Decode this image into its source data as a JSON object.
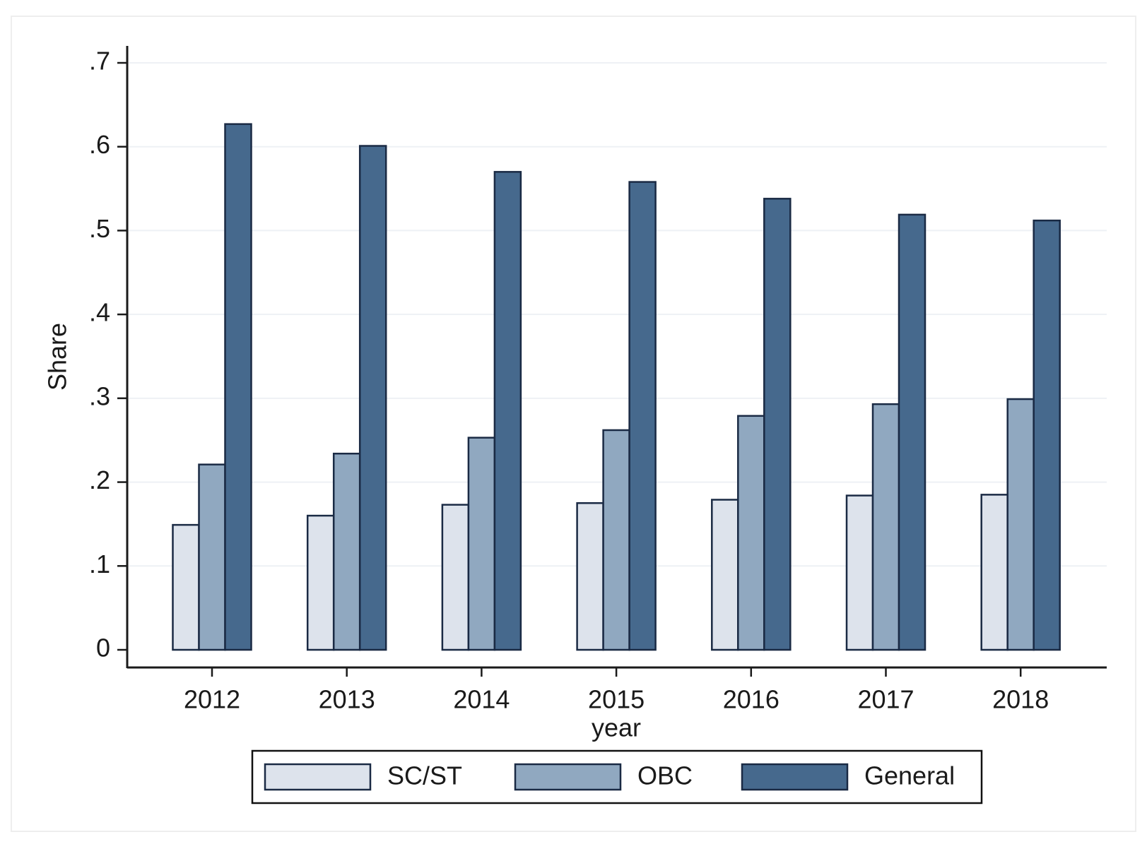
{
  "chart_data": {
    "type": "bar",
    "y_label": "Share",
    "x_label": "year",
    "categories": [
      "2012",
      "2013",
      "2014",
      "2015",
      "2016",
      "2017",
      "2018"
    ],
    "series": [
      {
        "name": "SC/ST",
        "color": "#dde3ec",
        "values": [
          0.149,
          0.16,
          0.173,
          0.175,
          0.179,
          0.184,
          0.185
        ]
      },
      {
        "name": "OBC",
        "color": "#90a8c0",
        "values": [
          0.221,
          0.234,
          0.253,
          0.262,
          0.279,
          0.293,
          0.299
        ]
      },
      {
        "name": "General",
        "color": "#46698d",
        "values": [
          0.627,
          0.601,
          0.57,
          0.558,
          0.538,
          0.519,
          0.512
        ]
      }
    ],
    "ylim": [
      0,
      0.7
    ],
    "yticks": [
      0,
      {
        "value": 0.1,
        "label": ".1"
      },
      {
        "value": 0.2,
        "label": ".2"
      },
      {
        "value": 0.3,
        "label": ".3"
      },
      {
        "value": 0.4,
        "label": ".4"
      },
      {
        "value": 0.5,
        "label": ".5"
      },
      {
        "value": 0.6,
        "label": ".6"
      },
      {
        "value": 0.7,
        "label": ".7"
      }
    ],
    "grid": true,
    "legend": "bottom"
  }
}
